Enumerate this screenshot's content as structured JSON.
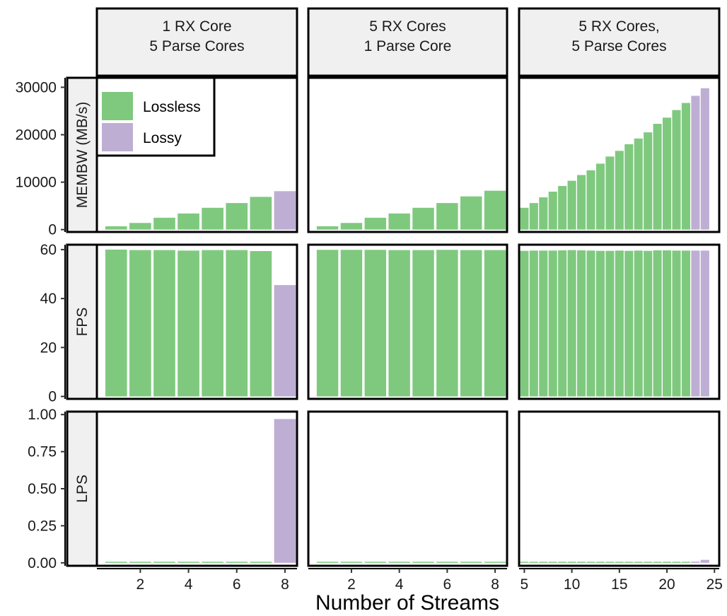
{
  "chart_data": {
    "type": "bar",
    "facet_layout": "grid",
    "xlabel": "Number of Streams",
    "columns": [
      {
        "line1": "1 RX Core",
        "line2": "5 Parse Cores"
      },
      {
        "line1": "5 RX Cores",
        "line2": "1 Parse Core"
      },
      {
        "line1": "5 RX Cores,",
        "line2": "5 Parse Cores"
      }
    ],
    "rows": [
      {
        "label": "MEMBW (MB/s)",
        "ylim": [
          -500,
          32000
        ],
        "ticks": [
          0,
          10000,
          20000,
          30000
        ],
        "tick_labels": [
          "0",
          "10000",
          "20000",
          "30000"
        ]
      },
      {
        "label": "FPS",
        "ylim": [
          -1,
          62
        ],
        "ticks": [
          0,
          20,
          40,
          60
        ],
        "tick_labels": [
          "0",
          "20",
          "40",
          "60"
        ]
      },
      {
        "label": "LPS",
        "ylim": [
          -0.02,
          1.02
        ],
        "ticks": [
          0,
          0.25,
          0.5,
          0.75,
          1.0
        ],
        "tick_labels": [
          "0.00",
          "0.25",
          "0.50",
          "0.75",
          "1.00"
        ]
      }
    ],
    "x_axes": [
      {
        "xlim": [
          0.2,
          8.5
        ],
        "ticks": [
          2,
          4,
          6,
          8
        ],
        "tick_labels": [
          "2",
          "4",
          "6",
          "8"
        ]
      },
      {
        "xlim": [
          0.2,
          8.5
        ],
        "ticks": [
          2,
          4,
          6,
          8
        ],
        "tick_labels": [
          "2",
          "4",
          "6",
          "8"
        ]
      },
      {
        "xlim": [
          4.45,
          25.5
        ],
        "ticks": [
          5,
          10,
          15,
          20,
          25
        ],
        "tick_labels": [
          "5",
          "10",
          "15",
          "20",
          "25"
        ]
      }
    ],
    "legend": {
      "placement": "inside-top-left",
      "entries": [
        {
          "name": "Lossless",
          "color": "#7fc97f"
        },
        {
          "name": "Lossy",
          "color": "#beaed4"
        }
      ]
    },
    "panels": [
      {
        "x": [
          1,
          2,
          3,
          4,
          5,
          6,
          7,
          8
        ],
        "membw": [
          700,
          1400,
          2500,
          3400,
          4600,
          5600,
          6900,
          8100
        ],
        "fps": [
          60,
          59.8,
          59.8,
          59.6,
          59.8,
          59.8,
          59.4,
          45.5
        ],
        "lps": [
          0,
          0,
          0,
          0,
          0,
          0,
          0,
          0.97
        ],
        "lossy": [
          false,
          false,
          false,
          false,
          false,
          false,
          false,
          true
        ]
      },
      {
        "x": [
          1,
          2,
          3,
          4,
          5,
          6,
          7,
          8
        ],
        "membw": [
          700,
          1400,
          2500,
          3400,
          4600,
          5600,
          7000,
          8200
        ],
        "fps": [
          59.9,
          59.9,
          59.9,
          59.8,
          59.8,
          59.9,
          59.8,
          59.8
        ],
        "lps": [
          0,
          0,
          0,
          0,
          0,
          0,
          0,
          0
        ],
        "lossy": [
          false,
          false,
          false,
          false,
          false,
          false,
          false,
          false
        ]
      },
      {
        "x": [
          5,
          6,
          7,
          8,
          9,
          10,
          11,
          12,
          13,
          14,
          15,
          16,
          17,
          18,
          19,
          20,
          21,
          22,
          23,
          24
        ],
        "membw": [
          4600,
          5600,
          6800,
          8000,
          9200,
          10300,
          11500,
          12500,
          13900,
          15400,
          16600,
          18000,
          19200,
          20500,
          22300,
          23600,
          25200,
          26700,
          28200,
          29800
        ],
        "fps": [
          59.5,
          59.6,
          59.6,
          59.6,
          59.7,
          59.8,
          59.7,
          59.6,
          59.5,
          59.5,
          59.6,
          59.5,
          59.6,
          59.5,
          59.7,
          59.7,
          59.6,
          59.6,
          59.6,
          59.6
        ],
        "lps": [
          0,
          0,
          0,
          0,
          0,
          0,
          0,
          0,
          0,
          0,
          0,
          0,
          0,
          0,
          0,
          0,
          0,
          0,
          0.008,
          0.02
        ],
        "lossy": [
          false,
          false,
          false,
          false,
          false,
          false,
          false,
          false,
          false,
          false,
          false,
          false,
          false,
          false,
          false,
          false,
          false,
          false,
          true,
          true
        ]
      }
    ]
  }
}
